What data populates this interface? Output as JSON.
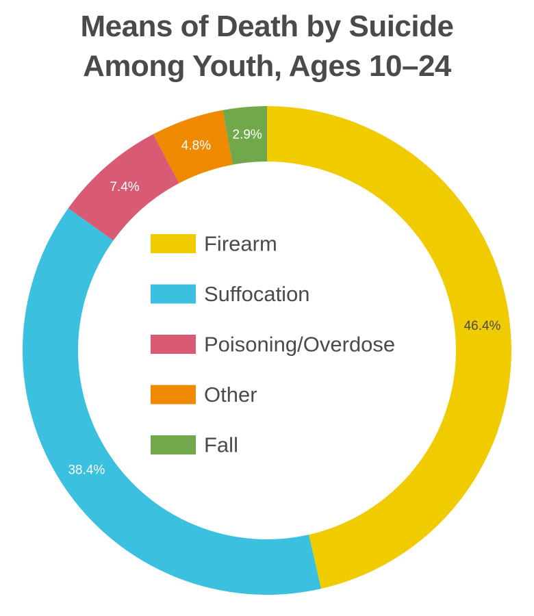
{
  "chart_data": {
    "type": "pie",
    "variant": "donut",
    "title_lines": [
      "Means of Death by Suicide",
      "Among Youth, Ages 10–24"
    ],
    "slices": [
      {
        "label": "Firearm",
        "value": 46.4,
        "value_label": "46.4%",
        "color": "#f0cb00",
        "label_color": "#4a4a4a"
      },
      {
        "label": "Suffocation",
        "value": 38.4,
        "value_label": "38.4%",
        "color": "#3bc0e0",
        "label_color": "#ffffff"
      },
      {
        "label": "Poisoning/Overdose",
        "value": 7.4,
        "value_label": "7.4%",
        "color": "#d95b73",
        "label_color": "#ffffff"
      },
      {
        "label": "Other",
        "value": 4.8,
        "value_label": "4.8%",
        "color": "#ef8a00",
        "label_color": "#ffffff"
      },
      {
        "label": "Fall",
        "value": 2.9,
        "value_label": "2.9%",
        "color": "#72a84c",
        "label_color": "#ffffff"
      }
    ],
    "legend_position": "center",
    "start_angle": "top",
    "direction": "clockwise"
  }
}
